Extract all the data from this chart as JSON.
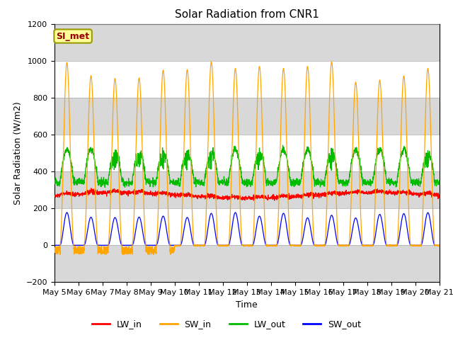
{
  "title": "Solar Radiation from CNR1",
  "xlabel": "Time",
  "ylabel": "Solar Radiation (W/m2)",
  "ylim": [
    -200,
    1200
  ],
  "yticks": [
    -200,
    0,
    200,
    400,
    600,
    800,
    1000,
    1200
  ],
  "total_days": 16,
  "colors": {
    "LW_in": "#ff0000",
    "SW_in": "#ffa500",
    "LW_out": "#00bb00",
    "SW_out": "#0000ff"
  },
  "si_met_label": "SI_met",
  "si_met_color": "#990000",
  "si_met_bg": "#ffff99",
  "si_met_border": "#999900",
  "background_color": "#ffffff",
  "grid_band_color": "#d8d8d8",
  "title_fontsize": 11,
  "axis_fontsize": 9,
  "tick_fontsize": 8,
  "lw_in_base": 270,
  "lw_out_base": 340,
  "lw_out_peak": 520,
  "sw_in_peak": 960,
  "sw_out_peak": 170
}
